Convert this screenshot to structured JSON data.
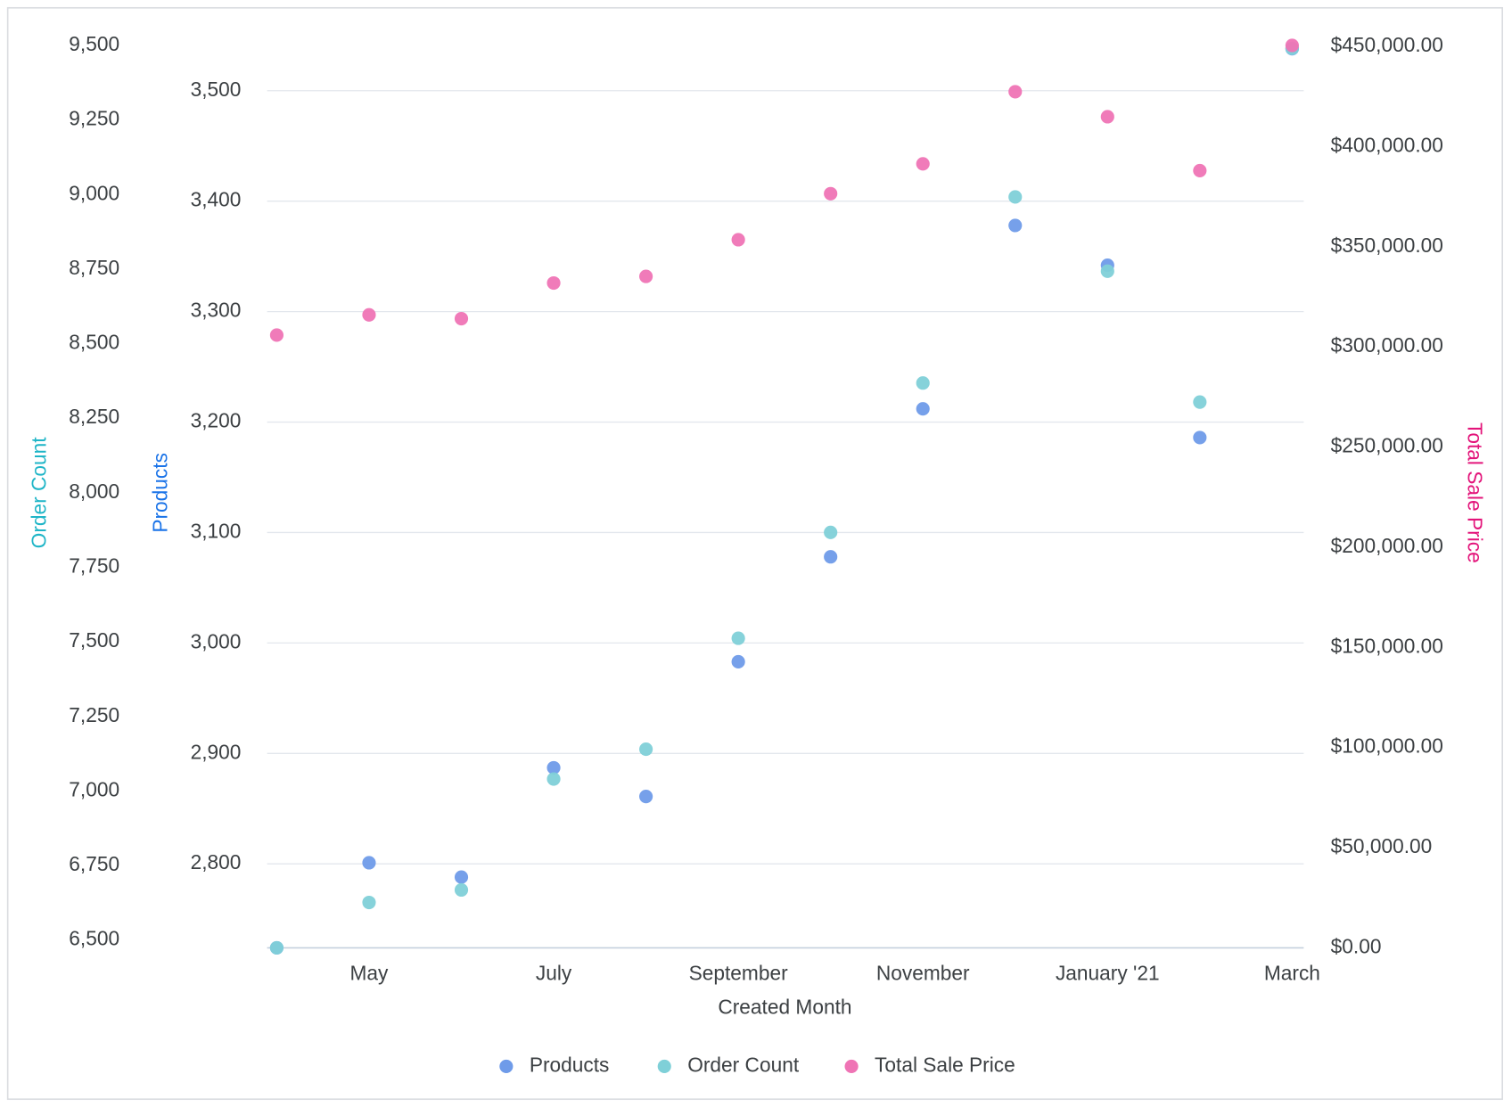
{
  "chart_data": {
    "type": "scatter",
    "x_label": "Created Month",
    "categories": [
      null,
      "May",
      null,
      "July",
      null,
      "September",
      null,
      "November",
      null,
      "January '21",
      null,
      "March"
    ],
    "ylabel": "Products",
    "ylabel_color": "#1a73e8",
    "ylim": [
      2724,
      3541
    ],
    "yticks": [
      {
        "value": 2800,
        "label": "2,800"
      },
      {
        "value": 2900,
        "label": "2,900"
      },
      {
        "value": 3000,
        "label": "3,000"
      },
      {
        "value": 3100,
        "label": "3,100"
      },
      {
        "value": 3200,
        "label": "3,200"
      },
      {
        "value": 3300,
        "label": "3,300"
      },
      {
        "value": 3400,
        "label": "3,400"
      },
      {
        "value": 3500,
        "label": "3,500"
      }
    ],
    "y3label": "Order Count",
    "y3label_color": "#1fb5c7",
    "y3lim": [
      6474,
      9500
    ],
    "y3ticks": [
      {
        "value": 6500,
        "label": "6,500"
      },
      {
        "value": 6750,
        "label": "6,750"
      },
      {
        "value": 7000,
        "label": "7,000"
      },
      {
        "value": 7250,
        "label": "7,250"
      },
      {
        "value": 7500,
        "label": "7,500"
      },
      {
        "value": 7750,
        "label": "7,750"
      },
      {
        "value": 8000,
        "label": "8,000"
      },
      {
        "value": 8250,
        "label": "8,250"
      },
      {
        "value": 8500,
        "label": "8,500"
      },
      {
        "value": 8750,
        "label": "8,750"
      },
      {
        "value": 9000,
        "label": "9,000"
      },
      {
        "value": 9250,
        "label": "9,250"
      },
      {
        "value": 9500,
        "label": "9,500"
      }
    ],
    "y2label": "Total Sale Price",
    "y2label_color": "#e3147a",
    "y2lim": [
      0,
      450500
    ],
    "y2ticks": [
      {
        "value": 0,
        "label": "$0.00"
      },
      {
        "value": 50000,
        "label": "$50,000.00"
      },
      {
        "value": 100000,
        "label": "$100,000.00"
      },
      {
        "value": 150000,
        "label": "$150,000.00"
      },
      {
        "value": 200000,
        "label": "$200,000.00"
      },
      {
        "value": 250000,
        "label": "$250,000.00"
      },
      {
        "value": 300000,
        "label": "$300,000.00"
      },
      {
        "value": 350000,
        "label": "$350,000.00"
      },
      {
        "value": 400000,
        "label": "$400,000.00"
      },
      {
        "value": 450000,
        "label": "$450,000.00"
      }
    ],
    "grid": true,
    "legend": "bottom",
    "series": [
      {
        "name": "Products",
        "color": "#6f9be9",
        "axis": "y",
        "values": [
          2724,
          2801,
          2788,
          2887,
          2861,
          2983,
          3078,
          3212,
          3378,
          3342,
          3186,
          3538
        ]
      },
      {
        "name": "Order Count",
        "color": "#7fd0d8",
        "axis": "y3",
        "values": [
          6474,
          6626,
          6668,
          7040,
          7140,
          7512,
          7867,
          8368,
          8992,
          8743,
          8304,
          9490
        ]
      },
      {
        "name": "Total Sale Price",
        "color": "#ef74b5",
        "axis": "y2",
        "values": [
          305900,
          316000,
          314100,
          331900,
          335200,
          353500,
          376500,
          391400,
          427400,
          414900,
          388000,
          450500
        ]
      }
    ]
  }
}
